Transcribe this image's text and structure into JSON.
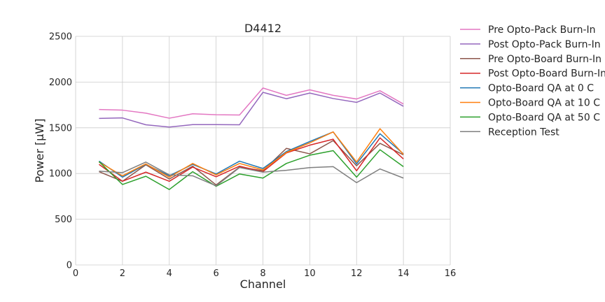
{
  "chart_data": {
    "type": "line",
    "title": "D4412",
    "xlabel": "Channel",
    "ylabel": "Power [μW]",
    "xlim": [
      0,
      16
    ],
    "ylim": [
      0,
      2500
    ],
    "xticks": [
      0,
      2,
      4,
      6,
      8,
      10,
      12,
      14,
      16
    ],
    "yticks": [
      0,
      500,
      1000,
      1500,
      2000,
      2500
    ],
    "grid": true,
    "legend_position": "outside-right",
    "x": [
      1,
      2,
      3,
      4,
      5,
      6,
      7,
      8,
      9,
      10,
      11,
      12,
      13,
      14
    ],
    "series": [
      {
        "name": "Pre Opto-Pack Burn-In",
        "color": "#e377c2",
        "values": [
          1700,
          1693,
          1660,
          1605,
          1653,
          1643,
          1640,
          1935,
          1855,
          1915,
          1855,
          1815,
          1905,
          1760
        ]
      },
      {
        "name": "Post Opto-Pack Burn-In",
        "color": "#9467bd",
        "values": [
          1603,
          1608,
          1533,
          1508,
          1535,
          1535,
          1533,
          1888,
          1818,
          1880,
          1820,
          1778,
          1880,
          1735
        ]
      },
      {
        "name": "Pre Opto-Board Burn-In",
        "color": "#8c564b",
        "values": [
          1020,
          915,
          1095,
          940,
          1080,
          875,
          1070,
          1030,
          1275,
          1215,
          1360,
          1085,
          1330,
          1205
        ]
      },
      {
        "name": "Post Opto-Board Burn-In",
        "color": "#d62728",
        "values": [
          1100,
          915,
          1015,
          915,
          1070,
          965,
          1080,
          1020,
          1225,
          1310,
          1375,
          1030,
          1390,
          1160
        ]
      },
      {
        "name": "Opto-Board QA at 0 C",
        "color": "#1f77b4",
        "values": [
          1135,
          960,
          1100,
          975,
          1100,
          995,
          1135,
          1055,
          1240,
          1350,
          1455,
          1105,
          1435,
          1215
        ]
      },
      {
        "name": "Opto-Board QA at 10 C",
        "color": "#ff7f0e",
        "values": [
          1125,
          975,
          1105,
          960,
          1110,
          985,
          1110,
          1040,
          1230,
          1335,
          1455,
          1125,
          1490,
          1210
        ]
      },
      {
        "name": "Opto-Board QA at 50 C",
        "color": "#2ca02c",
        "values": [
          1130,
          880,
          970,
          825,
          1020,
          860,
          995,
          950,
          1110,
          1200,
          1250,
          960,
          1260,
          1075
        ]
      },
      {
        "name": "Reception Test",
        "color": "#7f7f7f",
        "values": [
          1025,
          1010,
          1125,
          985,
          975,
          865,
          1065,
          1015,
          1035,
          1065,
          1075,
          900,
          1050,
          950
        ]
      }
    ]
  }
}
